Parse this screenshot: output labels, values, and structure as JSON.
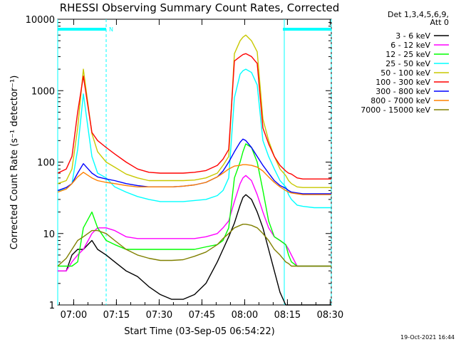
{
  "chart_data": {
    "type": "line",
    "title": "RHESSI Observing Summary Count Rates, Corrected",
    "xlabel": "Start Time (03-Sep-05 06:54:22)",
    "ylabel": "Corrected Count Rate (s⁻¹ detector⁻¹)",
    "ylim": [
      1,
      10000
    ],
    "yscale": "log",
    "x_range_minutes": [
      0,
      96
    ],
    "x_ticks": [
      {
        "label": "07:00",
        "minutes": 5.6
      },
      {
        "label": "07:15",
        "minutes": 20.6
      },
      {
        "label": "07:30",
        "minutes": 35.6
      },
      {
        "label": "07:45",
        "minutes": 50.6
      },
      {
        "label": "08:00",
        "minutes": 65.6
      },
      {
        "label": "08:15",
        "minutes": 80.6
      },
      {
        "label": "08:30",
        "minutes": 95.6
      }
    ],
    "y_ticks": [
      {
        "label": "1",
        "value": 1
      },
      {
        "label": "10",
        "value": 10
      },
      {
        "label": "100",
        "value": 100
      },
      {
        "label": "1000",
        "value": 1000
      },
      {
        "label": "10000",
        "value": 10000
      }
    ],
    "legend_header": [
      "Det 1,3,4,5,6,9,",
      "Att 0"
    ],
    "legend_position": "outside-right",
    "timestamp": "19-Oct-2021 16:44",
    "night_marker": "N",
    "eclipse_bars": [
      [
        0,
        17
      ],
      [
        79,
        96
      ]
    ],
    "vlines_solid": [
      0,
      79.5
    ],
    "vlines_dashed": [
      17,
      96
    ],
    "series": [
      {
        "name": "3 - 6 keV",
        "color": "#000000",
        "x": [
          0,
          3,
          5,
          7,
          9,
          12,
          14,
          17,
          20,
          24,
          28,
          32,
          36,
          40,
          44,
          48,
          52,
          56,
          58,
          60,
          62,
          64,
          65,
          66,
          68,
          70,
          72,
          74,
          76,
          78,
          80,
          81,
          82,
          84,
          86,
          90,
          96
        ],
        "y": [
          3,
          3,
          5,
          6,
          6,
          8,
          6,
          5,
          4,
          3,
          2.5,
          1.8,
          1.4,
          1.2,
          1.2,
          1.4,
          2,
          4,
          6,
          9,
          14,
          25,
          32,
          35,
          30,
          20,
          12,
          6,
          3,
          1.5,
          1,
          1,
          1,
          1,
          1,
          1,
          1
        ]
      },
      {
        "name": "6 - 12 keV",
        "color": "#ff00ff",
        "x": [
          0,
          3,
          5,
          7,
          9,
          12,
          14,
          17,
          20,
          24,
          28,
          32,
          36,
          40,
          44,
          48,
          52,
          56,
          58,
          60,
          62,
          64,
          65,
          66,
          68,
          70,
          72,
          74,
          76,
          78,
          80,
          81,
          82,
          84,
          86,
          90,
          96
        ],
        "y": [
          3,
          3,
          4,
          5,
          6,
          10,
          12,
          12,
          11,
          9,
          8.5,
          8.5,
          8.5,
          8.5,
          8.5,
          8.5,
          9,
          10,
          12,
          15,
          28,
          50,
          60,
          65,
          55,
          35,
          20,
          12,
          9,
          8,
          7,
          6,
          5,
          3.5,
          3.5,
          3.5,
          3.5
        ]
      },
      {
        "name": "12 - 25 keV",
        "color": "#00ff00",
        "x": [
          0,
          3,
          5,
          7,
          9,
          12,
          14,
          17,
          20,
          24,
          28,
          32,
          36,
          40,
          44,
          48,
          52,
          56,
          58,
          60,
          62,
          64,
          65,
          66,
          68,
          70,
          72,
          74,
          76,
          78,
          80,
          81,
          82,
          84,
          86,
          90,
          96
        ],
        "y": [
          3.5,
          3.5,
          3.5,
          4,
          12,
          20,
          12,
          8,
          7,
          6,
          6,
          6,
          6,
          6,
          6,
          6,
          6.5,
          7,
          8,
          12,
          60,
          100,
          140,
          180,
          160,
          100,
          40,
          15,
          9,
          8,
          7,
          5,
          4,
          3.5,
          3.5,
          3.5,
          3.5
        ]
      },
      {
        "name": "25 - 50 keV",
        "color": "#00ffff",
        "x": [
          0,
          3,
          5,
          7,
          9,
          12,
          14,
          17,
          20,
          24,
          28,
          32,
          36,
          40,
          44,
          48,
          52,
          56,
          58,
          60,
          62,
          64,
          65,
          66,
          68,
          70,
          72,
          74,
          76,
          78,
          80,
          81,
          82,
          84,
          86,
          90,
          96
        ],
        "y": [
          40,
          42,
          50,
          150,
          900,
          120,
          70,
          60,
          45,
          38,
          33,
          30,
          28,
          28,
          28,
          29,
          30,
          34,
          40,
          60,
          800,
          1700,
          1900,
          2000,
          1800,
          1200,
          200,
          120,
          80,
          55,
          45,
          35,
          30,
          25,
          24,
          23,
          23
        ]
      },
      {
        "name": "50 - 100 keV",
        "color": "#c8c800",
        "x": [
          0,
          3,
          5,
          7,
          9,
          12,
          14,
          17,
          20,
          24,
          28,
          32,
          36,
          40,
          44,
          48,
          52,
          56,
          58,
          60,
          62,
          64,
          65,
          66,
          68,
          70,
          72,
          74,
          76,
          78,
          80,
          81,
          82,
          84,
          86,
          90,
          96
        ],
        "y": [
          50,
          55,
          80,
          300,
          2000,
          250,
          140,
          100,
          85,
          68,
          60,
          55,
          55,
          55,
          55,
          56,
          60,
          70,
          90,
          120,
          3300,
          5000,
          5600,
          6000,
          5000,
          3500,
          400,
          200,
          120,
          80,
          65,
          55,
          50,
          45,
          44,
          44,
          44
        ]
      },
      {
        "name": "100 - 300 keV",
        "color": "#ff0000",
        "x": [
          0,
          3,
          5,
          7,
          9,
          12,
          14,
          17,
          20,
          24,
          28,
          32,
          36,
          40,
          44,
          48,
          52,
          56,
          58,
          60,
          62,
          64,
          65,
          66,
          68,
          70,
          72,
          74,
          76,
          78,
          80,
          81,
          82,
          84,
          86,
          90,
          96
        ],
        "y": [
          70,
          80,
          120,
          500,
          1600,
          260,
          200,
          160,
          130,
          100,
          80,
          72,
          70,
          70,
          70,
          72,
          76,
          90,
          110,
          150,
          2600,
          3000,
          3200,
          3300,
          3000,
          2400,
          300,
          180,
          120,
          90,
          75,
          70,
          68,
          60,
          58,
          58,
          58
        ]
      },
      {
        "name": "300 - 800 keV",
        "color": "#0000ff",
        "x": [
          0,
          3,
          5,
          7,
          9,
          12,
          14,
          17,
          20,
          24,
          28,
          32,
          36,
          40,
          44,
          48,
          52,
          56,
          58,
          60,
          62,
          64,
          65,
          66,
          68,
          70,
          72,
          74,
          76,
          78,
          80,
          81,
          82,
          84,
          86,
          90,
          96
        ],
        "y": [
          40,
          44,
          50,
          70,
          95,
          70,
          62,
          58,
          55,
          50,
          47,
          45,
          45,
          45,
          46,
          48,
          52,
          62,
          75,
          100,
          140,
          190,
          210,
          200,
          160,
          120,
          90,
          70,
          55,
          47,
          43,
          40,
          38,
          37,
          36,
          36,
          36
        ]
      },
      {
        "name": "800 - 7000 keV",
        "color": "#ff8000",
        "x": [
          0,
          3,
          5,
          7,
          9,
          12,
          14,
          17,
          20,
          24,
          28,
          32,
          36,
          40,
          44,
          48,
          52,
          56,
          58,
          60,
          62,
          64,
          65,
          66,
          68,
          70,
          72,
          74,
          76,
          78,
          80,
          81,
          82,
          84,
          86,
          90,
          96
        ],
        "y": [
          38,
          42,
          50,
          62,
          72,
          60,
          55,
          52,
          50,
          47,
          45,
          45,
          45,
          45,
          46,
          48,
          52,
          62,
          70,
          80,
          88,
          90,
          92,
          92,
          90,
          85,
          75,
          62,
          52,
          45,
          40,
          38,
          37,
          36,
          35,
          35,
          35
        ]
      },
      {
        "name": "7000 - 15000 keV",
        "color": "#808000",
        "x": [
          0,
          3,
          5,
          7,
          9,
          12,
          14,
          17,
          20,
          24,
          28,
          32,
          36,
          40,
          44,
          48,
          52,
          56,
          58,
          60,
          62,
          64,
          65,
          66,
          68,
          70,
          72,
          74,
          76,
          78,
          80,
          81,
          82,
          84,
          86,
          90,
          96
        ],
        "y": [
          3.5,
          4.5,
          6,
          8,
          9,
          11,
          11,
          10,
          8,
          6,
          5,
          4.5,
          4.2,
          4.2,
          4.3,
          4.8,
          5.5,
          7,
          8.5,
          10,
          12,
          13,
          13.5,
          13.5,
          13,
          12,
          10,
          8,
          6,
          5,
          4,
          3.8,
          3.5,
          3.5,
          3.5,
          3.5,
          3.5
        ]
      }
    ]
  }
}
